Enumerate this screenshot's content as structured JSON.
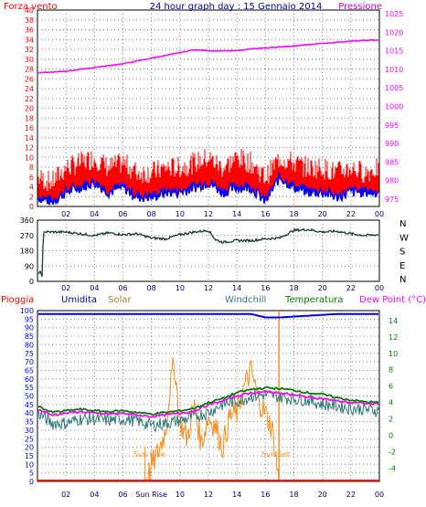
{
  "colors": {
    "wind": "#ff0000",
    "gust_fill": "#ff0000",
    "wind_avg": "#0000ff",
    "pressure": "#ff00ff",
    "direction": "#1a3a3a",
    "humidity": "#0000ff",
    "solar": "#ff8c1a",
    "windchill": "#2f7a7a",
    "temperature": "#008000",
    "dewpoint": "#ff00ff",
    "rain": "#ff0000",
    "frame": "#000000",
    "grid": "#808080"
  },
  "chart_data": [
    {
      "type": "line",
      "title": "24 hour graph day : 15 Gennaio 2014",
      "left_axis_label": "Forza vento",
      "right_axis_label": "Pressione",
      "y_left_ticks": [
        "40",
        "38",
        "36",
        "34",
        "32",
        "30",
        "28",
        "26",
        "24",
        "22",
        "20",
        "18",
        "16",
        "14",
        "12",
        "10",
        "8",
        "6",
        "4",
        "2",
        "0"
      ],
      "y_right_ticks": [
        "1025",
        "1020",
        "1015",
        "1010",
        "1005",
        "1000",
        "995",
        "990",
        "985",
        "980",
        "975"
      ],
      "x_ticks": [
        "02",
        "04",
        "06",
        "08",
        "10",
        "12",
        "14",
        "16",
        "18",
        "20",
        "22",
        "00"
      ],
      "ylim_left": [
        0,
        40
      ],
      "ylim_right": [
        973,
        1026
      ],
      "series": [
        {
          "name": "pressure",
          "x": [
            0,
            2,
            4,
            6,
            8,
            10,
            11,
            12,
            13,
            14,
            15,
            16,
            17,
            18,
            19,
            20,
            21,
            22,
            23,
            24
          ],
          "values": [
            1009,
            1009.5,
            1010.5,
            1011.5,
            1013,
            1014.5,
            1015.3,
            1015,
            1015,
            1015,
            1015.5,
            1015.8,
            1016,
            1016.3,
            1016.7,
            1017,
            1017.3,
            1017.6,
            1017.8,
            1017.9
          ]
        },
        {
          "name": "wind_avg",
          "x": [
            0,
            1,
            2,
            3,
            4,
            5,
            6,
            7,
            8,
            9,
            10,
            11,
            12,
            13,
            14,
            15,
            16,
            17,
            18,
            19,
            20,
            21,
            22,
            23,
            24
          ],
          "values": [
            2,
            1,
            3,
            4,
            5,
            3,
            4,
            2,
            2,
            3,
            3,
            4,
            5,
            3,
            4,
            4,
            1,
            6,
            4,
            3,
            3,
            2,
            3,
            3,
            3
          ]
        },
        {
          "name": "wind_gust",
          "x": [
            0,
            1,
            2,
            3,
            4,
            5,
            6,
            7,
            8,
            9,
            10,
            11,
            12,
            13,
            14,
            15,
            16,
            17,
            18,
            19,
            20,
            21,
            22,
            23,
            24
          ],
          "values": [
            5,
            4,
            7,
            8,
            9,
            7,
            8,
            6,
            6,
            7,
            7,
            8,
            9,
            7,
            9,
            8,
            5,
            9,
            8,
            7,
            7,
            6,
            7,
            6,
            7
          ]
        }
      ]
    },
    {
      "type": "line",
      "title": "",
      "y_ticks": [
        "360",
        "270",
        "180",
        "90",
        "0"
      ],
      "right_labels": [
        "N",
        "W",
        "S",
        "E",
        "N"
      ],
      "x_ticks": [
        "02",
        "04",
        "06",
        "08",
        "10",
        "12",
        "14",
        "16",
        "18",
        "20",
        "22",
        "00"
      ],
      "ylim": [
        0,
        360
      ],
      "series": [
        {
          "name": "direction",
          "x": [
            0,
            0.2,
            0.35,
            0.4,
            0.5,
            1,
            2,
            3,
            4,
            5,
            6,
            7,
            8,
            9,
            10,
            11,
            12,
            12.5,
            13,
            14,
            15,
            16,
            17,
            18,
            19,
            20,
            21,
            22,
            23,
            24
          ],
          "values": [
            40,
            60,
            20,
            290,
            290,
            290,
            290,
            280,
            270,
            285,
            275,
            280,
            255,
            250,
            275,
            290,
            300,
            245,
            230,
            240,
            240,
            250,
            255,
            300,
            305,
            290,
            295,
            280,
            270,
            275
          ]
        }
      ]
    },
    {
      "type": "line",
      "title": "",
      "legend": [
        "Pioggia",
        "Umidita",
        "Solar",
        "Windchill",
        "Temperatura",
        "Dew Point (°C)"
      ],
      "y_left_ticks": [
        "100",
        "95",
        "90",
        "85",
        "80",
        "75",
        "70",
        "65",
        "60",
        "55",
        "50",
        "45",
        "40",
        "35",
        "30",
        "25",
        "20",
        "15",
        "10",
        "5",
        "0"
      ],
      "y_right_ticks": [
        "14",
        "12",
        "10",
        "8",
        "6",
        "4",
        "2",
        "0",
        "-2",
        "-4"
      ],
      "x_ticks": [
        "02",
        "04",
        "06",
        "Sun Rise",
        "10",
        "12",
        "14",
        "16",
        "18",
        "20",
        "22",
        "00"
      ],
      "annotations": [
        "Sun Rise",
        "Sun Set"
      ],
      "ylim_left": [
        0,
        100
      ],
      "ylim_right": [
        -5.6,
        15.2
      ],
      "series": [
        {
          "name": "Umidita",
          "x": [
            0,
            1,
            2,
            3,
            4,
            5,
            6,
            7,
            8,
            9,
            10,
            11,
            12,
            13,
            14,
            15,
            15.5,
            16,
            17,
            18,
            19,
            20,
            21,
            22,
            23,
            24
          ],
          "values": [
            98,
            98,
            98,
            98,
            98,
            98,
            98,
            98,
            98,
            98,
            98,
            98,
            98,
            98,
            98,
            98,
            97,
            96,
            96,
            96.5,
            97,
            97.5,
            98,
            98,
            98,
            98
          ]
        },
        {
          "name": "Temperatura",
          "x": [
            0,
            1,
            2,
            3,
            4,
            5,
            6,
            7,
            8,
            9,
            10,
            11,
            12,
            13,
            14,
            15,
            16,
            17,
            18,
            19,
            20,
            21,
            22,
            23,
            24
          ],
          "values": [
            3.6,
            2.8,
            3.0,
            3.2,
            3.0,
            2.9,
            3.0,
            2.8,
            2.6,
            2.8,
            3.0,
            3.3,
            4.0,
            4.5,
            5.2,
            5.6,
            5.8,
            5.7,
            5.5,
            5.2,
            5.0,
            4.6,
            4.3,
            4.1,
            4.0
          ]
        },
        {
          "name": "Dew Point",
          "x": [
            0,
            1,
            2,
            3,
            4,
            5,
            6,
            7,
            8,
            9,
            10,
            11,
            12,
            13,
            14,
            15,
            16,
            17,
            18,
            19,
            20,
            21,
            22,
            23,
            24
          ],
          "values": [
            3.2,
            2.5,
            2.7,
            2.9,
            2.7,
            2.6,
            2.7,
            2.5,
            2.3,
            2.5,
            2.7,
            3.0,
            3.7,
            4.2,
            4.8,
            5.2,
            5.3,
            5.2,
            4.9,
            4.7,
            4.5,
            4.2,
            4.0,
            3.9,
            3.8
          ]
        },
        {
          "name": "Windchill",
          "x": [
            0,
            1,
            2,
            3,
            4,
            5,
            6,
            7,
            8,
            9,
            10,
            11,
            12,
            13,
            14,
            15,
            16,
            17,
            18,
            19,
            20,
            21,
            22,
            23,
            24
          ],
          "values": [
            2.8,
            1.5,
            1.5,
            2.0,
            2.0,
            1.8,
            2.0,
            1.8,
            1.2,
            1.5,
            1.8,
            2.3,
            2.8,
            3.8,
            4.2,
            4.8,
            5.0,
            4.7,
            4.5,
            4.3,
            3.8,
            3.6,
            3.3,
            3.2,
            3.0
          ]
        },
        {
          "name": "Solar",
          "x": [
            7.55,
            8,
            8.5,
            9,
            9.3,
            9.6,
            10,
            10.5,
            11,
            11.5,
            12,
            12.5,
            13,
            13.5,
            14,
            14.5,
            15,
            15.5,
            16,
            16.5,
            16.8,
            16.95
          ],
          "values": [
            0,
            8,
            18,
            30,
            55,
            70,
            35,
            25,
            45,
            22,
            38,
            32,
            20,
            38,
            40,
            55,
            65,
            48,
            40,
            30,
            10,
            0
          ]
        },
        {
          "name": "Pioggia",
          "x": [
            0,
            24
          ],
          "values": [
            0.5,
            0.5
          ]
        }
      ]
    }
  ]
}
